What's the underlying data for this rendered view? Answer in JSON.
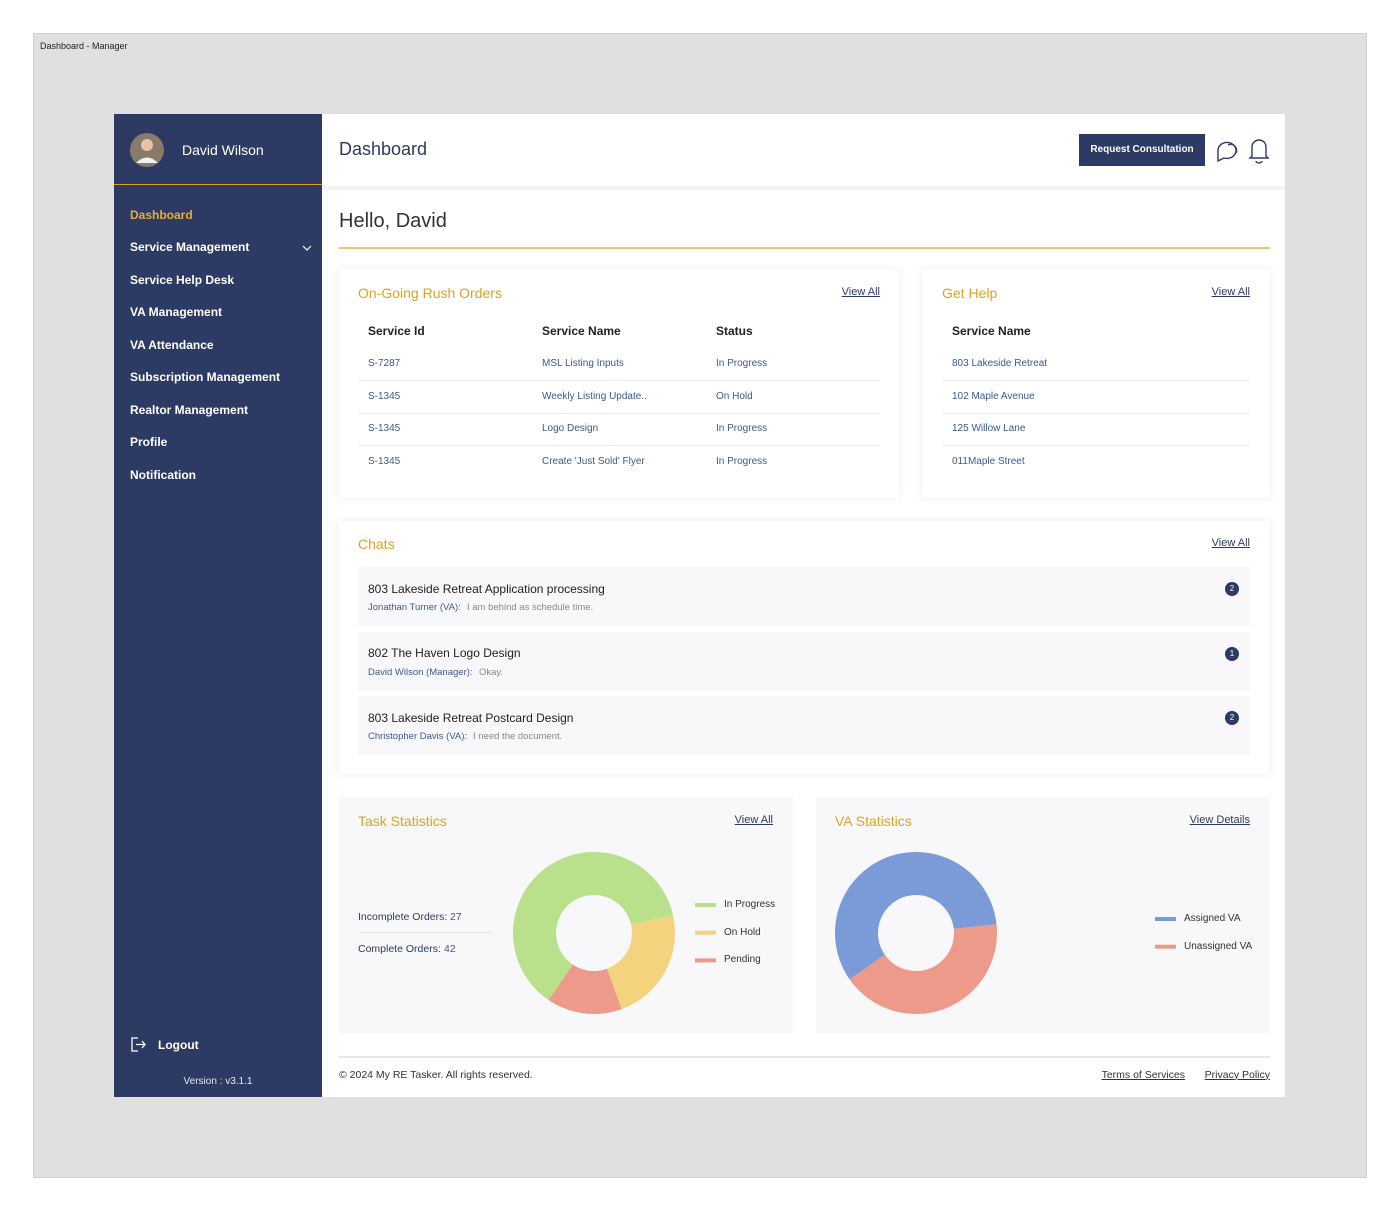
{
  "window_title": "Dashboard - Manager",
  "sidebar": {
    "user_name": "David Wilson",
    "nav": [
      "Dashboard",
      "Service Management",
      "Service Help Desk",
      "VA Management",
      "VA Attendance",
      "Subscription Management",
      "Realtor Management",
      "Profile",
      "Notification"
    ],
    "logout": "Logout",
    "version": "Version : v3.1.1"
  },
  "header": {
    "title": "Dashboard",
    "button": "Request Consultation"
  },
  "greeting": "Hello, David",
  "rush_orders": {
    "title": "On-Going Rush Orders",
    "link": "View All",
    "columns": [
      "Service Id",
      "Service Name",
      "Status"
    ],
    "rows": [
      [
        "S-7287",
        "MSL Listing Inputs",
        "In Progress"
      ],
      [
        "S-1345",
        "Weekly Listing Update..",
        "On Hold"
      ],
      [
        "S-1345",
        "Logo Design",
        "In Progress"
      ],
      [
        "S-1345",
        "Create 'Just Sold' Flyer",
        "In Progress"
      ]
    ]
  },
  "get_help": {
    "title": "Get Help",
    "link": "View All",
    "columns": [
      "Service Name"
    ],
    "rows": [
      [
        "803 Lakeside Retreat"
      ],
      [
        "102 Maple Avenue"
      ],
      [
        "125 Willow Lane"
      ],
      [
        "011Maple Street"
      ]
    ]
  },
  "chats": {
    "title": "Chats",
    "link": "View All",
    "items": [
      {
        "subject": "803 Lakeside Retreat Application processing",
        "sender": "Jonathan Turner (VA):",
        "message": "I am behind as schedule time.",
        "unread": 2
      },
      {
        "subject": "802 The Haven Logo Design",
        "sender": "David Wilson (Manager):",
        "message": "Okay.",
        "unread": 1
      },
      {
        "subject": "803 Lakeside Retreat Postcard Design",
        "sender": "Christopher Davis (VA):",
        "message": "I need the document.",
        "unread": 2
      }
    ]
  },
  "task_statistics": {
    "title": "Task Statistics",
    "link": "View All",
    "summary": [
      {
        "label": "Incomplete Orders:",
        "value": 27
      },
      {
        "label": "Complete Orders:",
        "value": 42
      }
    ],
    "chart": {
      "type": "pie",
      "categories": [
        "In Progress",
        "On Hold",
        "Pending"
      ],
      "values": [
        62,
        23,
        15
      ],
      "colors": [
        "#b9e08a",
        "#f3d37e",
        "#ee9a8a"
      ]
    }
  },
  "va_statistics": {
    "title": "VA Statistics",
    "link": "View Details",
    "chart": {
      "type": "pie",
      "categories": [
        "Assigned VA",
        "Unassigned VA"
      ],
      "values": [
        58,
        42
      ],
      "colors": [
        "#7b9ad8",
        "#ee9a8a"
      ]
    }
  },
  "footer": {
    "copyright": "© 2024 My RE Tasker. All rights reserved.",
    "links": [
      "Terms of Services",
      "Privacy Policy"
    ]
  }
}
